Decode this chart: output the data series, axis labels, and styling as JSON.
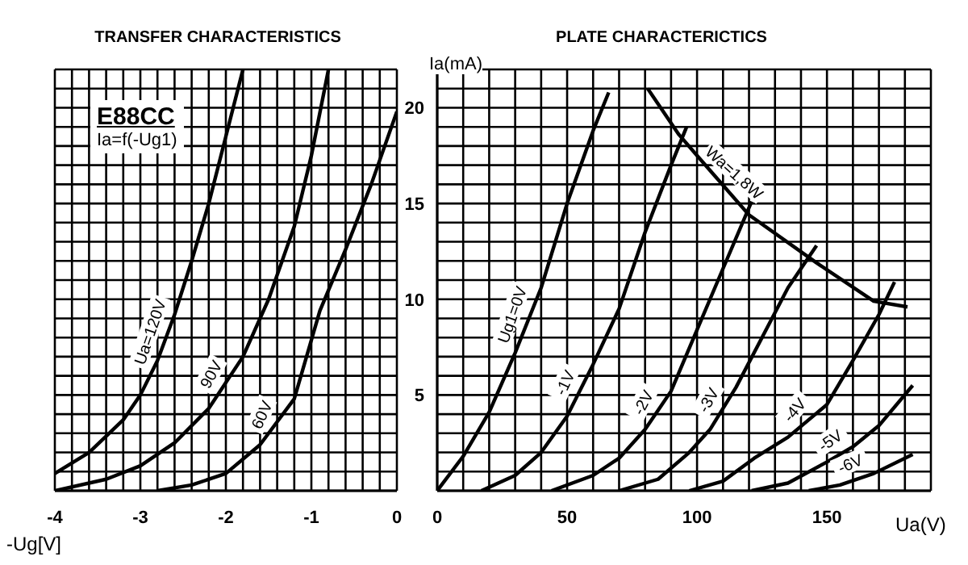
{
  "chart_data": [
    {
      "type": "line",
      "title": "TRANSFER CHARACTERISTICS",
      "xlabel": "-Ug[V]",
      "annotations": [
        "E88CC",
        "Ia=f(-Ug1)"
      ],
      "xlim": [
        -4,
        0
      ],
      "xticks": [
        -4,
        {
          "value": -3.8,
          "label": null
        },
        {
          "value": -3.6,
          "label": null
        },
        {
          "value": -3.4,
          "label": null
        },
        {
          "value": -3.2,
          "label": null
        },
        -3,
        {
          "value": -2.8,
          "label": null
        },
        {
          "value": -2.6,
          "label": null
        },
        {
          "value": -2.4,
          "label": null
        },
        {
          "value": -2.2,
          "label": null
        },
        -2,
        {
          "value": -1.8,
          "label": null
        },
        {
          "value": -1.6,
          "label": null
        },
        {
          "value": -1.4,
          "label": null
        },
        {
          "value": -1.2,
          "label": null
        },
        -1,
        {
          "value": -0.8,
          "label": null
        },
        {
          "value": -0.6,
          "label": null
        },
        {
          "value": -0.4,
          "label": null
        },
        {
          "value": -0.2,
          "label": null
        },
        0
      ],
      "ylim": [
        0,
        22
      ],
      "yticks": [
        {
          "value": 0,
          "label": null
        },
        {
          "value": 1,
          "label": null
        },
        {
          "value": 2,
          "label": null
        },
        {
          "value": 3,
          "label": null
        },
        {
          "value": 4,
          "label": null
        },
        5,
        {
          "value": 6,
          "label": null
        },
        {
          "value": 7,
          "label": null
        },
        {
          "value": 8,
          "label": null
        },
        {
          "value": 9,
          "label": null
        },
        10,
        {
          "value": 11,
          "label": null
        },
        {
          "value": 12,
          "label": null
        },
        {
          "value": 13,
          "label": null
        },
        {
          "value": 14,
          "label": null
        },
        15,
        {
          "value": 16,
          "label": null
        },
        {
          "value": 17,
          "label": null
        },
        {
          "value": 18,
          "label": null
        },
        {
          "value": 19,
          "label": null
        },
        20,
        {
          "value": 21,
          "label": null
        },
        {
          "value": 22,
          "label": null
        }
      ],
      "tick_labels": "x",
      "grid": true,
      "marker": "none",
      "line_style": "solid",
      "series": [
        {
          "name": "Ua=120V",
          "color": "#000000",
          "x": [
            -4,
            -3.6,
            -3.2,
            -3.0,
            -2.8,
            -2.6,
            -2.4,
            -2.2,
            -2.0,
            -1.8
          ],
          "values": [
            0.9,
            2.0,
            3.7,
            5,
            6.8,
            9.2,
            12,
            15,
            18.5,
            22
          ]
        },
        {
          "name": "90V",
          "color": "#000000",
          "x": [
            -4,
            -3.4,
            -3.0,
            -2.6,
            -2.2,
            -1.8,
            -1.5,
            -1.2,
            -1.0,
            -0.8
          ],
          "values": [
            0,
            0.6,
            1.3,
            2.5,
            4.3,
            7,
            10,
            13.8,
            17.5,
            22
          ]
        },
        {
          "name": "60V",
          "color": "#000000",
          "x": [
            -2.8,
            -2.4,
            -2.0,
            -1.6,
            -1.2,
            -0.9,
            -0.6,
            -0.3,
            0
          ],
          "values": [
            0,
            0.3,
            0.9,
            2.4,
            4.8,
            9.4,
            12.6,
            16,
            19.8
          ]
        }
      ]
    },
    {
      "type": "line",
      "title": "PLATE CHARACTERICTICS",
      "xlabel": "Ua(V)",
      "ylabel": "Ia(mA)",
      "xlim": [
        0,
        190
      ],
      "xticks": [
        0,
        {
          "value": 10,
          "label": null
        },
        {
          "value": 20,
          "label": null
        },
        {
          "value": 30,
          "label": null
        },
        {
          "value": 40,
          "label": null
        },
        50,
        {
          "value": 60,
          "label": null
        },
        {
          "value": 70,
          "label": null
        },
        {
          "value": 80,
          "label": null
        },
        {
          "value": 90,
          "label": null
        },
        100,
        {
          "value": 110,
          "label": null
        },
        {
          "value": 120,
          "label": null
        },
        {
          "value": 130,
          "label": null
        },
        {
          "value": 140,
          "label": null
        },
        150,
        {
          "value": 160,
          "label": null
        },
        {
          "value": 170,
          "label": null
        },
        {
          "value": 180,
          "label": null
        },
        {
          "value": 190,
          "label": null
        }
      ],
      "ylim": [
        0,
        22
      ],
      "yticks": [
        {
          "value": 0,
          "label": null
        },
        {
          "value": 1,
          "label": null
        },
        {
          "value": 2,
          "label": null
        },
        {
          "value": 3,
          "label": null
        },
        {
          "value": 4,
          "label": null
        },
        5,
        {
          "value": 6,
          "label": null
        },
        {
          "value": 7,
          "label": null
        },
        {
          "value": 8,
          "label": null
        },
        {
          "value": 9,
          "label": null
        },
        10,
        {
          "value": 11,
          "label": null
        },
        {
          "value": 12,
          "label": null
        },
        {
          "value": 13,
          "label": null
        },
        {
          "value": 14,
          "label": null
        },
        15,
        {
          "value": 16,
          "label": null
        },
        {
          "value": 17,
          "label": null
        },
        {
          "value": 18,
          "label": null
        },
        {
          "value": 19,
          "label": null
        },
        20,
        {
          "value": 21,
          "label": null
        },
        {
          "value": 22,
          "label": null
        }
      ],
      "grid": true,
      "marker": "none",
      "line_style": "solid",
      "series": [
        {
          "name": "Ug1=0V",
          "color": "#000000",
          "x": [
            0,
            10,
            20,
            30,
            40,
            50,
            60,
            66
          ],
          "values": [
            0,
            1.8,
            4.1,
            7.2,
            10.6,
            15,
            18.8,
            20.8
          ]
        },
        {
          "name": "-1V",
          "color": "#000000",
          "x": [
            17,
            30,
            40,
            50,
            60,
            70,
            80,
            90,
            96
          ],
          "values": [
            0,
            0.8,
            2,
            3.9,
            6.6,
            9.5,
            13.5,
            17,
            19
          ]
        },
        {
          "name": "-2V",
          "color": "#000000",
          "x": [
            44,
            60,
            70,
            80,
            90,
            100,
            110,
            121
          ],
          "values": [
            0,
            0.8,
            1.7,
            3.2,
            5.2,
            8.4,
            11.6,
            15.1
          ]
        },
        {
          "name": "-3V",
          "color": "#000000",
          "x": [
            70,
            85,
            97,
            105,
            115,
            125,
            135,
            146
          ],
          "values": [
            0,
            0.6,
            2,
            3.2,
            5.4,
            8,
            10.6,
            12.8
          ]
        },
        {
          "name": "-4V",
          "color": "#000000",
          "x": [
            97,
            110,
            122,
            135,
            150,
            160,
            170,
            176
          ],
          "values": [
            0,
            0.5,
            1.7,
            2.8,
            4.5,
            6.8,
            9.2,
            10.9
          ]
        },
        {
          "name": "-5V",
          "color": "#000000",
          "x": [
            121,
            135,
            150,
            160,
            170,
            183
          ],
          "values": [
            0,
            0.4,
            1.5,
            2.3,
            3.4,
            5.5
          ]
        },
        {
          "name": "-6V",
          "color": "#000000",
          "x": [
            143,
            155,
            168,
            183
          ],
          "values": [
            0,
            0.3,
            0.9,
            1.9
          ]
        },
        {
          "name": "Wa=1,8W",
          "color": "#000000",
          "x": [
            81,
            93,
            100,
            120,
            146,
            168,
            181
          ],
          "values": [
            21,
            18.6,
            17.5,
            14.4,
            11.9,
            9.9,
            9.6
          ]
        }
      ]
    }
  ]
}
